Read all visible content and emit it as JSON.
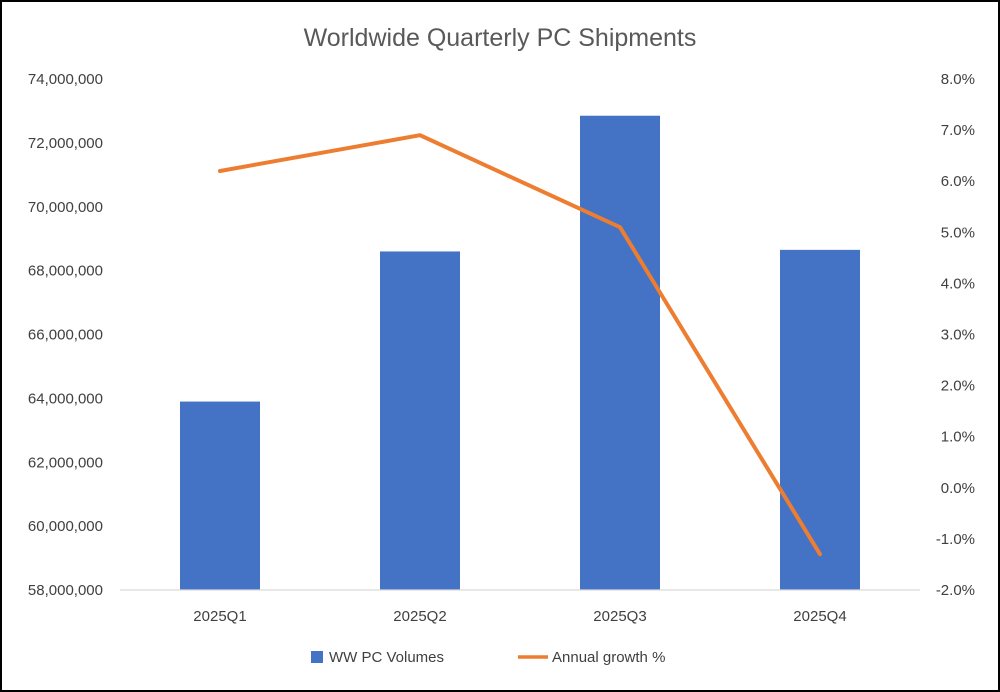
{
  "chart_data": {
    "type": "bar",
    "title": "Worldwide Quarterly PC Shipments",
    "categories": [
      "2025Q1",
      "2025Q2",
      "2025Q3",
      "2025Q4"
    ],
    "series": [
      {
        "name": "WW PC Volumes",
        "type": "bar",
        "axis": "left",
        "color": "#4472C4",
        "values": [
          63900000,
          68600000,
          72850000,
          68650000
        ]
      },
      {
        "name": "Annual growth %",
        "type": "line",
        "axis": "right",
        "color": "#ED7D31",
        "values": [
          6.2,
          6.9,
          5.1,
          -1.3
        ]
      }
    ],
    "y_left": {
      "ylim": [
        58000000,
        74000000
      ],
      "ticks": [
        58000000,
        60000000,
        62000000,
        64000000,
        66000000,
        68000000,
        70000000,
        72000000,
        74000000
      ],
      "tick_labels": [
        "58,000,000",
        "60,000,000",
        "62,000,000",
        "64,000,000",
        "66,000,000",
        "68,000,000",
        "70,000,000",
        "72,000,000",
        "74,000,000"
      ]
    },
    "y_right": {
      "ylim": [
        -2.0,
        8.0
      ],
      "ticks": [
        -2,
        -1,
        0,
        1,
        2,
        3,
        4,
        5,
        6,
        7,
        8
      ],
      "tick_labels": [
        "-2.0%",
        "-1.0%",
        "0.0%",
        "1.0%",
        "2.0%",
        "3.0%",
        "4.0%",
        "5.0%",
        "6.0%",
        "7.0%",
        "8.0%"
      ]
    },
    "grid": false,
    "legend_position": "bottom",
    "axis_line_color": "#D9D9D9"
  }
}
